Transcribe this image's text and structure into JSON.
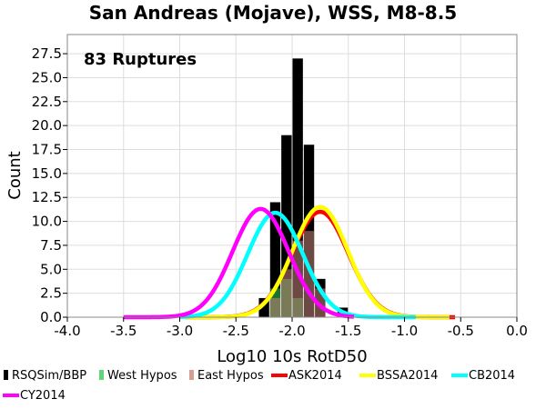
{
  "chart_data": {
    "type": "bar",
    "title": "San Andreas (Mojave), WSS, M8-8.5",
    "annotation": "83 Ruptures",
    "xlabel": "Log10 10s RotD50",
    "ylabel": "Count",
    "xlim": [
      -4.0,
      0.0
    ],
    "ylim": [
      0,
      29.5
    ],
    "xticks": [
      -4.0,
      -3.5,
      -3.0,
      -2.5,
      -2.0,
      -1.5,
      -1.0,
      -0.5,
      0.0
    ],
    "xtick_labels": [
      "-4.0",
      "-3.5",
      "-3.0",
      "-2.5",
      "-2.0",
      "-1.5",
      "-1.0",
      "-0.5",
      "0.0"
    ],
    "yticks": [
      0,
      2.5,
      5,
      7.5,
      10,
      12.5,
      15,
      17.5,
      20,
      22.5,
      25,
      27.5
    ],
    "ytick_labels": [
      "0.0",
      "2.5",
      "5.0",
      "7.5",
      "10.0",
      "12.5",
      "15.0",
      "17.5",
      "20.0",
      "22.5",
      "25.0",
      "27.5"
    ],
    "grid": true,
    "legend_position": "bottom",
    "histograms": [
      {
        "name": "RSQSim/BBP",
        "color": "#000000",
        "bins": [
          [
            -2.3,
            -2.2,
            2
          ],
          [
            -2.2,
            -2.1,
            12
          ],
          [
            -2.1,
            -2.0,
            19
          ],
          [
            -2.0,
            -1.9,
            27
          ],
          [
            -1.9,
            -1.8,
            18
          ],
          [
            -1.8,
            -1.7,
            4
          ],
          [
            -1.6,
            -1.5,
            1
          ]
        ]
      },
      {
        "name": "West Hypos",
        "color": "#33cc55",
        "bins": [
          [
            -2.2,
            -2.1,
            3
          ],
          [
            -2.1,
            -2.0,
            4
          ],
          [
            -2.0,
            -1.9,
            2
          ]
        ]
      },
      {
        "name": "East Hypos",
        "color": "#c9847a",
        "bins": [
          [
            -2.2,
            -2.1,
            2
          ],
          [
            -2.1,
            -2.0,
            5
          ],
          [
            -2.0,
            -1.9,
            8
          ],
          [
            -1.9,
            -1.8,
            9
          ],
          [
            -1.8,
            -1.7,
            3
          ]
        ]
      }
    ],
    "series": [
      {
        "name": "ASK2014",
        "color": "#ff0000",
        "mean": -1.75,
        "sigma": 0.25,
        "peak": 11.0,
        "x_range": [
          -2.95,
          -0.55
        ]
      },
      {
        "name": "BSSA2014",
        "color": "#ffff00",
        "mean": -1.75,
        "sigma": 0.245,
        "peak": 11.5,
        "x_range": [
          -2.95,
          -0.6
        ]
      },
      {
        "name": "CB2014",
        "color": "#00ffff",
        "mean": -2.15,
        "sigma": 0.245,
        "peak": 10.9,
        "x_range": [
          -3.0,
          -0.9
        ]
      },
      {
        "name": "CY2014",
        "color": "#ff00ff",
        "mean": -2.28,
        "sigma": 0.25,
        "peak": 11.3,
        "x_range": [
          -3.5,
          -1.45
        ]
      }
    ]
  }
}
